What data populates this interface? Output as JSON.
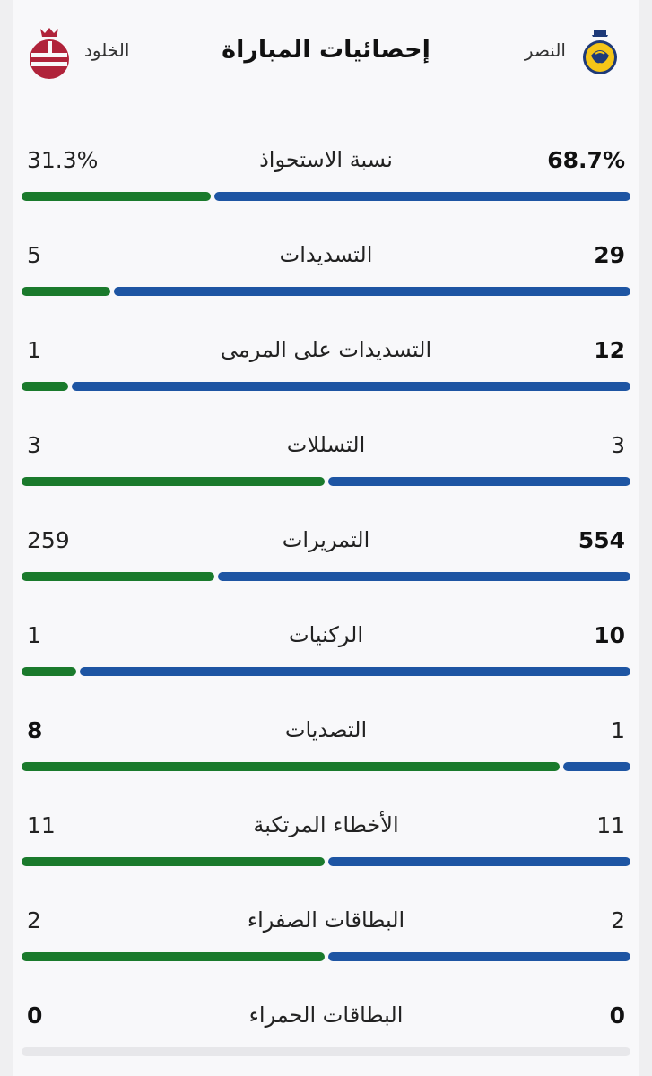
{
  "header": {
    "title": "إحصائيات المباراة",
    "home_team": "النصر",
    "away_team": "الخلود",
    "home_color": "#1e55a3",
    "away_color": "#1a7a2c",
    "home_logo": "al-nassr-logo",
    "away_logo": "al-kholood-logo"
  },
  "stats": [
    {
      "label": "نسبة الاستحواذ",
      "home": "68.7%",
      "away": "31.3%",
      "home_value": 68.7,
      "away_value": 31.3,
      "leader": "home"
    },
    {
      "label": "التسديدات",
      "home": "29",
      "away": "5",
      "home_value": 29,
      "away_value": 5,
      "leader": "home"
    },
    {
      "label": "التسديدات على المرمى",
      "home": "12",
      "away": "1",
      "home_value": 12,
      "away_value": 1,
      "leader": "home"
    },
    {
      "label": "التسللات",
      "home": "3",
      "away": "3",
      "home_value": 3,
      "away_value": 3,
      "leader": "none"
    },
    {
      "label": "التمريرات",
      "home": "554",
      "away": "259",
      "home_value": 554,
      "away_value": 259,
      "leader": "home"
    },
    {
      "label": "الركنيات",
      "home": "10",
      "away": "1",
      "home_value": 10,
      "away_value": 1,
      "leader": "home"
    },
    {
      "label": "التصديات",
      "home": "1",
      "away": "8",
      "home_value": 1,
      "away_value": 8,
      "leader": "away"
    },
    {
      "label": "الأخطاء المرتكبة",
      "home": "11",
      "away": "11",
      "home_value": 11,
      "away_value": 11,
      "leader": "none"
    },
    {
      "label": "البطاقات الصفراء",
      "home": "2",
      "away": "2",
      "home_value": 2,
      "away_value": 2,
      "leader": "none"
    },
    {
      "label": "البطاقات الحمراء",
      "home": "0",
      "away": "0",
      "home_value": 0,
      "away_value": 0,
      "leader": "both"
    }
  ]
}
